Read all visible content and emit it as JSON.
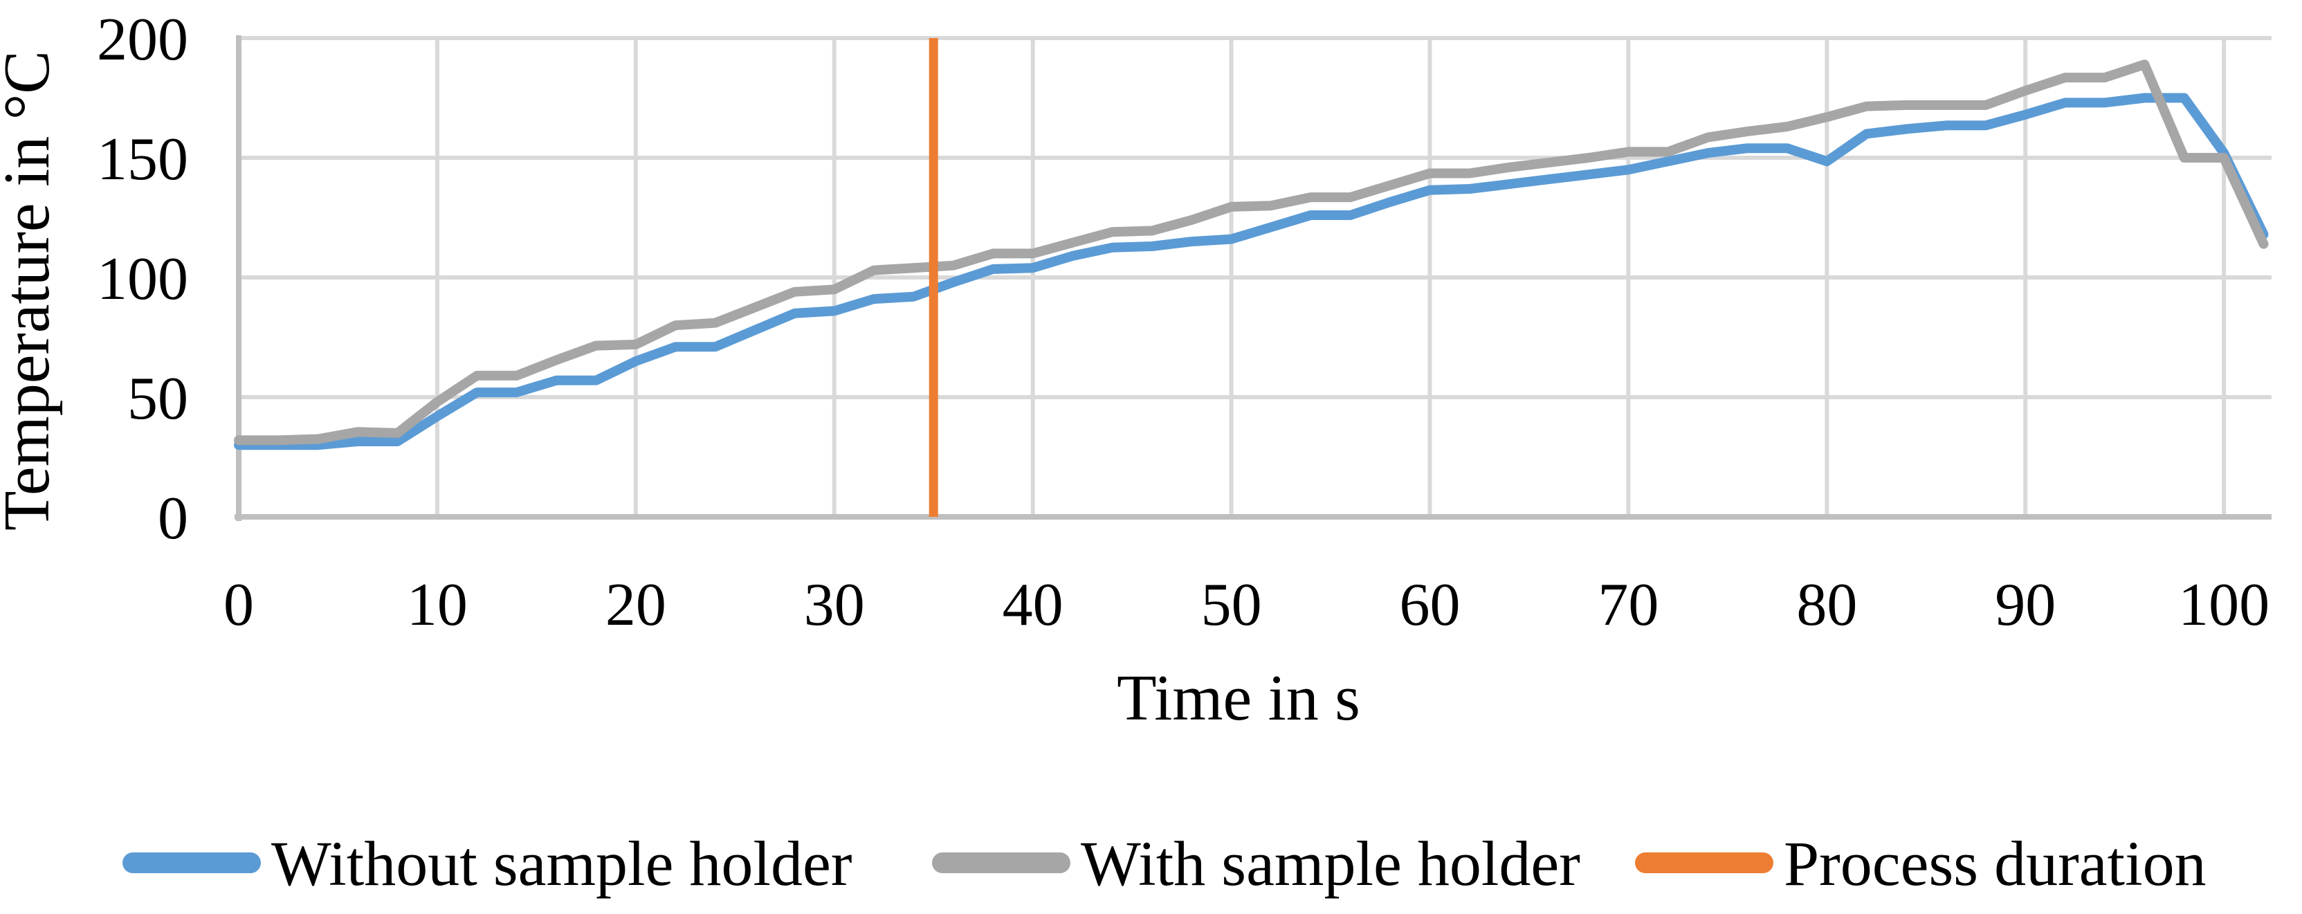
{
  "chart_data": {
    "type": "line",
    "title": "",
    "xlabel": "Time in s",
    "ylabel": "Temperature in °C",
    "xlim": [
      0,
      102.4
    ],
    "ylim": [
      0,
      200
    ],
    "x_ticks": [
      0,
      10,
      20,
      30,
      40,
      50,
      60,
      70,
      80,
      90,
      100
    ],
    "y_ticks": [
      0,
      50,
      100,
      150,
      200
    ],
    "grid": true,
    "legend_position": "bottom",
    "x": [
      0,
      2,
      4,
      6,
      8,
      10,
      12,
      14,
      16,
      18,
      20,
      22,
      24,
      26,
      28,
      30,
      32,
      34,
      36,
      38,
      40,
      42,
      44,
      46,
      48,
      50,
      52,
      54,
      56,
      58,
      60,
      62,
      64,
      66,
      68,
      70,
      72,
      74,
      76,
      78,
      80,
      82,
      84,
      86,
      88,
      90,
      92,
      94,
      96,
      98,
      100,
      102
    ],
    "series": [
      {
        "name": "Without sample holder",
        "color": "#5B9BD5",
        "values": [
          30,
          30,
          30,
          31.5,
          31.5,
          42,
          52,
          52,
          57,
          57,
          65,
          71,
          71,
          78,
          85,
          86,
          91,
          92,
          98,
          103.5,
          104,
          109,
          112.5,
          113,
          115,
          116,
          121,
          126,
          126,
          131.5,
          136.5,
          137,
          139,
          141,
          143,
          145,
          148.5,
          152,
          154,
          154,
          148.5,
          160,
          162,
          163.5,
          163.5,
          168,
          173,
          173,
          175,
          175,
          152,
          118
        ]
      },
      {
        "name": "With sample holder",
        "color": "#A6A6A6",
        "values": [
          32,
          32,
          32.5,
          35.5,
          35,
          48,
          59,
          59,
          65.5,
          71.5,
          72,
          80,
          81,
          87.5,
          94,
          95,
          103,
          104,
          105,
          110,
          110,
          114.5,
          119,
          119.5,
          124,
          129.5,
          130,
          133.5,
          133.5,
          138.5,
          143.5,
          143.5,
          146,
          148,
          150,
          152.5,
          152.5,
          158.5,
          161,
          163,
          167,
          171.5,
          172,
          172,
          172,
          178,
          183.5,
          183.5,
          189,
          150,
          150,
          114
        ]
      },
      {
        "name": "Process duration",
        "color": "#ED7D31",
        "type": "vline",
        "x_value": 35
      }
    ]
  },
  "colors": {
    "gridline": "#D9D9D9",
    "axis_line": "#BFBFBF",
    "background": "#FFFFFF",
    "text": "#000000"
  }
}
